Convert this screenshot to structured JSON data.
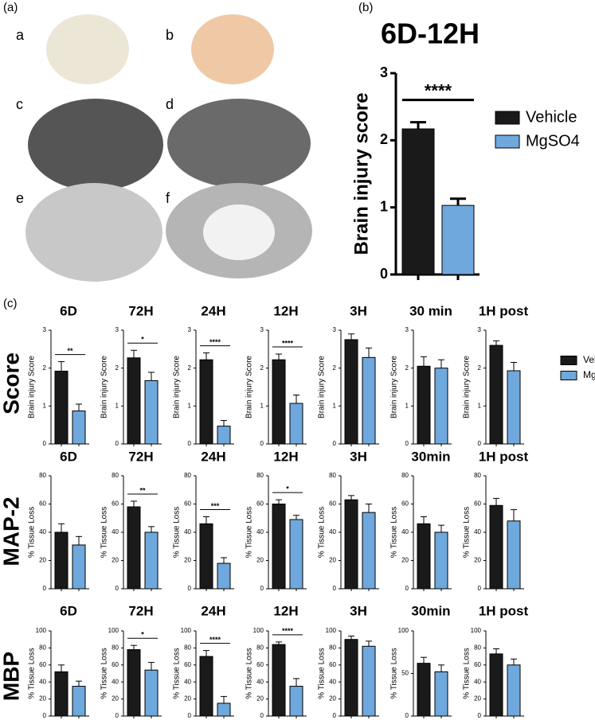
{
  "panel_labels": [
    "(a)",
    "(b)",
    "(c)"
  ],
  "image_labels": [
    "a",
    "b",
    "c",
    "d",
    "e",
    "f"
  ],
  "row_labels": [
    "Score",
    "MAP-2",
    "MBP"
  ],
  "legend": [
    {
      "name": "Vehicle",
      "color": "#1a1a1a"
    },
    {
      "name": "MgSO4",
      "color": "#6fa8dc"
    }
  ],
  "chart_data": [
    {
      "type": "bar",
      "title": "6D-12H",
      "y_label": "Brain injury score",
      "values": [
        2.17,
        1.03
      ],
      "errors": [
        0.1,
        0.1
      ],
      "colors": [
        "#1a1a1a",
        "#6fa8dc"
      ],
      "ylim": [
        0,
        3
      ],
      "yticks": [
        0,
        1,
        2,
        3
      ],
      "significance": "****",
      "legend": [
        {
          "name": "Vehicle",
          "color": "#1a1a1a"
        },
        {
          "name": "MgSO4",
          "color": "#6fa8dc"
        }
      ]
    },
    {
      "type": "bar",
      "title": "6D",
      "y_label": "Brain injury Score",
      "values": [
        1.92,
        0.87
      ],
      "errors": [
        0.25,
        0.18
      ],
      "colors": [
        "#1a1a1a",
        "#6fa8dc"
      ],
      "ylim": [
        0,
        3
      ],
      "yticks": [
        0,
        1,
        2,
        3
      ],
      "significance": "**"
    },
    {
      "type": "bar",
      "title": "72H",
      "y_label": "Brain injury Score",
      "values": [
        2.27,
        1.67
      ],
      "errors": [
        0.2,
        0.22
      ],
      "colors": [
        "#1a1a1a",
        "#6fa8dc"
      ],
      "ylim": [
        0,
        3
      ],
      "yticks": [
        0,
        1,
        2,
        3
      ],
      "significance": "*"
    },
    {
      "type": "bar",
      "title": "24H",
      "y_label": "Brain injury Score",
      "values": [
        2.22,
        0.47
      ],
      "errors": [
        0.18,
        0.15
      ],
      "colors": [
        "#1a1a1a",
        "#6fa8dc"
      ],
      "ylim": [
        0,
        3
      ],
      "yticks": [
        0,
        1,
        2,
        3
      ],
      "significance": "****"
    },
    {
      "type": "bar",
      "title": "12H",
      "y_label": "Brain injury Score",
      "values": [
        2.22,
        1.07
      ],
      "errors": [
        0.15,
        0.22
      ],
      "colors": [
        "#1a1a1a",
        "#6fa8dc"
      ],
      "ylim": [
        0,
        3
      ],
      "yticks": [
        0,
        1,
        2,
        3
      ],
      "significance": "****"
    },
    {
      "type": "bar",
      "title": "3H",
      "y_label": "Brain injury Score",
      "values": [
        2.75,
        2.28
      ],
      "errors": [
        0.15,
        0.25
      ],
      "colors": [
        "#1a1a1a",
        "#6fa8dc"
      ],
      "ylim": [
        0,
        3
      ],
      "yticks": [
        0,
        1,
        2,
        3
      ]
    },
    {
      "type": "bar",
      "title": "30 min",
      "y_label": "Brain injury Score",
      "values": [
        2.05,
        2.0
      ],
      "errors": [
        0.25,
        0.22
      ],
      "colors": [
        "#1a1a1a",
        "#6fa8dc"
      ],
      "ylim": [
        0,
        3
      ],
      "yticks": [
        0,
        1,
        2,
        3
      ]
    },
    {
      "type": "bar",
      "title": "1H post",
      "y_label": "Brain injury Score",
      "values": [
        2.6,
        1.93
      ],
      "errors": [
        0.12,
        0.22
      ],
      "colors": [
        "#1a1a1a",
        "#6fa8dc"
      ],
      "ylim": [
        0,
        3
      ],
      "yticks": [
        0,
        1,
        2,
        3
      ]
    },
    {
      "type": "bar",
      "title": "6D",
      "y_label": "% Tissue Loss",
      "values": [
        40,
        31
      ],
      "errors": [
        6,
        6
      ],
      "colors": [
        "#1a1a1a",
        "#6fa8dc"
      ],
      "ylim": [
        0,
        80
      ],
      "yticks": [
        0,
        20,
        40,
        60,
        80
      ]
    },
    {
      "type": "bar",
      "title": "72H",
      "y_label": "% Tissue Loss",
      "values": [
        58,
        40
      ],
      "errors": [
        4,
        4
      ],
      "colors": [
        "#1a1a1a",
        "#6fa8dc"
      ],
      "ylim": [
        0,
        80
      ],
      "yticks": [
        0,
        20,
        40,
        60,
        80
      ],
      "significance": "**"
    },
    {
      "type": "bar",
      "title": "24H",
      "y_label": "% Tissue Loss",
      "values": [
        46,
        18
      ],
      "errors": [
        5,
        4
      ],
      "colors": [
        "#1a1a1a",
        "#6fa8dc"
      ],
      "ylim": [
        0,
        80
      ],
      "yticks": [
        0,
        20,
        40,
        60,
        80
      ],
      "significance": "***"
    },
    {
      "type": "bar",
      "title": "12H",
      "y_label": "% Tissue Loss",
      "values": [
        60,
        49
      ],
      "errors": [
        3,
        3
      ],
      "colors": [
        "#1a1a1a",
        "#6fa8dc"
      ],
      "ylim": [
        0,
        80
      ],
      "yticks": [
        0,
        20,
        40,
        60,
        80
      ],
      "significance": "*"
    },
    {
      "type": "bar",
      "title": "3H",
      "y_label": "% Tissue Loss",
      "values": [
        63,
        54
      ],
      "errors": [
        3,
        6
      ],
      "colors": [
        "#1a1a1a",
        "#6fa8dc"
      ],
      "ylim": [
        0,
        80
      ],
      "yticks": [
        0,
        20,
        40,
        60,
        80
      ]
    },
    {
      "type": "bar",
      "title": "30min",
      "y_label": "% Tissue Loss",
      "values": [
        46,
        40
      ],
      "errors": [
        5,
        5
      ],
      "colors": [
        "#1a1a1a",
        "#6fa8dc"
      ],
      "ylim": [
        0,
        80
      ],
      "yticks": [
        0,
        20,
        40,
        60,
        80
      ]
    },
    {
      "type": "bar",
      "title": "1H post",
      "y_label": "% Tissue Loss",
      "values": [
        59,
        48
      ],
      "errors": [
        5,
        8
      ],
      "colors": [
        "#1a1a1a",
        "#6fa8dc"
      ],
      "ylim": [
        0,
        80
      ],
      "yticks": [
        0,
        20,
        40,
        60,
        80
      ]
    },
    {
      "type": "bar",
      "title": "6D",
      "y_label": "% Tissue Loss",
      "values": [
        52,
        35
      ],
      "errors": [
        8,
        6
      ],
      "colors": [
        "#1a1a1a",
        "#6fa8dc"
      ],
      "ylim": [
        0,
        100
      ],
      "yticks": [
        0,
        20,
        40,
        60,
        80,
        100
      ]
    },
    {
      "type": "bar",
      "title": "72H",
      "y_label": "% Tissue Loss",
      "values": [
        78,
        54
      ],
      "errors": [
        5,
        9
      ],
      "colors": [
        "#1a1a1a",
        "#6fa8dc"
      ],
      "ylim": [
        0,
        100
      ],
      "yticks": [
        0,
        20,
        40,
        60,
        80,
        100
      ],
      "significance": "*"
    },
    {
      "type": "bar",
      "title": "24H",
      "y_label": "% Tissue Loss",
      "values": [
        70,
        15
      ],
      "errors": [
        7,
        8
      ],
      "colors": [
        "#1a1a1a",
        "#6fa8dc"
      ],
      "ylim": [
        0,
        100
      ],
      "yticks": [
        0,
        20,
        40,
        60,
        80,
        100
      ],
      "significance": "****"
    },
    {
      "type": "bar",
      "title": "12H",
      "y_label": "% Tissue Loss",
      "values": [
        84,
        35
      ],
      "errors": [
        3,
        9
      ],
      "colors": [
        "#1a1a1a",
        "#6fa8dc"
      ],
      "ylim": [
        0,
        100
      ],
      "yticks": [
        0,
        20,
        40,
        60,
        80,
        100
      ],
      "significance": "****"
    },
    {
      "type": "bar",
      "title": "3H",
      "y_label": "% Tissue Loss",
      "values": [
        90,
        82
      ],
      "errors": [
        4,
        6
      ],
      "colors": [
        "#1a1a1a",
        "#6fa8dc"
      ],
      "ylim": [
        0,
        100
      ],
      "yticks": [
        0,
        20,
        40,
        60,
        80,
        100
      ]
    },
    {
      "type": "bar",
      "title": "30min",
      "y_label": "% Tissue Loss",
      "values": [
        62,
        52
      ],
      "errors": [
        7,
        8
      ],
      "colors": [
        "#1a1a1a",
        "#6fa8dc"
      ],
      "ylim": [
        0,
        100
      ],
      "yticks": [
        0,
        50,
        100
      ]
    },
    {
      "type": "bar",
      "title": "1H post",
      "y_label": "% Tissue Loss",
      "values": [
        73,
        60
      ],
      "errors": [
        6,
        7
      ],
      "colors": [
        "#1a1a1a",
        "#6fa8dc"
      ],
      "ylim": [
        0,
        100
      ],
      "yticks": [
        0,
        20,
        40,
        60,
        80,
        100
      ]
    }
  ]
}
